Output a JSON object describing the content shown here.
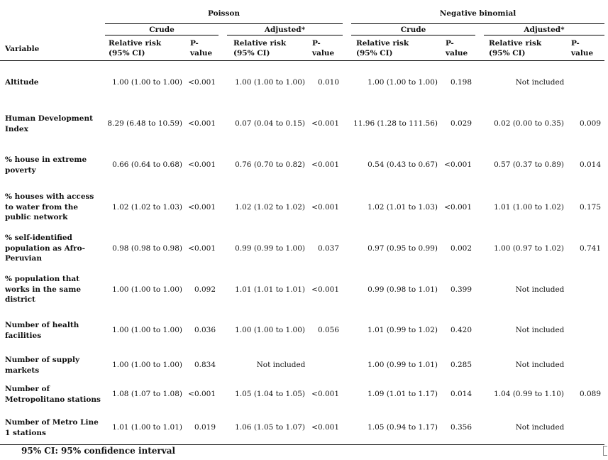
{
  "header": {
    "group_poisson": "Poisson",
    "group_negbin": "Negative binomial",
    "crude": "Crude",
    "adjusted": "Adjusted*",
    "variable": "Variable",
    "rr_line1": "Relative risk",
    "rr_line2": "(95% CI)",
    "p_line1": "P-",
    "p_line2": "value"
  },
  "rows": [
    {
      "variable": "Altitude",
      "p_crude_rr": "1.00 (1.00 to 1.00)",
      "p_crude_p": "<0.001",
      "p_adj_rr": "1.00 (1.00 to 1.00)",
      "p_adj_p": "0.010",
      "nb_crude_rr": "1.00 (1.00 to 1.00)",
      "nb_crude_p": "0.198",
      "nb_adj_rr": "Not included",
      "nb_adj_p": ""
    },
    {
      "variable": "Human Development Index",
      "p_crude_rr": "8.29 (6.48 to 10.59)",
      "p_crude_p": "<0.001",
      "p_adj_rr": "0.07 (0.04 to 0.15)",
      "p_adj_p": "<0.001",
      "nb_crude_rr": "11.96 (1.28 to 111.56)",
      "nb_crude_p": "0.029",
      "nb_adj_rr": "0.02 (0.00 to 0.35)",
      "nb_adj_p": "0.009"
    },
    {
      "variable": "% house in extreme poverty",
      "p_crude_rr": "0.66 (0.64 to 0.68)",
      "p_crude_p": "<0.001",
      "p_adj_rr": "0.76 (0.70 to 0.82)",
      "p_adj_p": "<0.001",
      "nb_crude_rr": "0.54 (0.43 to 0.67)",
      "nb_crude_p": "<0.001",
      "nb_adj_rr": "0.57 (0.37 to 0.89)",
      "nb_adj_p": "0.014"
    },
    {
      "variable": "% houses with access to water from the public network",
      "p_crude_rr": "1.02 (1.02 to 1.03)",
      "p_crude_p": "<0.001",
      "p_adj_rr": "1.02 (1.02 to 1.02)",
      "p_adj_p": "<0.001",
      "nb_crude_rr": "1.02 (1.01 to 1.03)",
      "nb_crude_p": "<0.001",
      "nb_adj_rr": "1.01 (1.00 to 1.02)",
      "nb_adj_p": "0.175"
    },
    {
      "variable": "% self-identified population as Afro-Peruvian",
      "p_crude_rr": "0.98 (0.98 to 0.98)",
      "p_crude_p": "<0.001",
      "p_adj_rr": "0.99 (0.99 to 1.00)",
      "p_adj_p": "0.037",
      "nb_crude_rr": "0.97 (0.95 to 0.99)",
      "nb_crude_p": "0.002",
      "nb_adj_rr": "1.00 (0.97 to 1.02)",
      "nb_adj_p": "0.741"
    },
    {
      "variable": "% population that works in the same district",
      "p_crude_rr": "1.00 (1.00 to 1.00)",
      "p_crude_p": "0.092",
      "p_adj_rr": "1.01 (1.01 to 1.01)",
      "p_adj_p": "<0.001",
      "nb_crude_rr": "0.99 (0.98 to 1.01)",
      "nb_crude_p": "0.399",
      "nb_adj_rr": "Not included",
      "nb_adj_p": ""
    },
    {
      "variable": "Number of health facilities",
      "p_crude_rr": "1.00 (1.00 to 1.00)",
      "p_crude_p": "0.036",
      "p_adj_rr": "1.00 (1.00 to 1.00)",
      "p_adj_p": "0.056",
      "nb_crude_rr": "1.01 (0.99 to 1.02)",
      "nb_crude_p": "0.420",
      "nb_adj_rr": "Not included",
      "nb_adj_p": ""
    },
    {
      "variable": "Number of supply markets",
      "p_crude_rr": "1.00 (1.00 to 1.00)",
      "p_crude_p": "0.834",
      "p_adj_rr": "Not included",
      "p_adj_p": "",
      "nb_crude_rr": "1.00 (0.99 to 1.01)",
      "nb_crude_p": "0.285",
      "nb_adj_rr": "Not included",
      "nb_adj_p": ""
    },
    {
      "variable": "Number of Metropolitano stations",
      "p_crude_rr": "1.08 (1.07 to 1.08)",
      "p_crude_p": "<0.001",
      "p_adj_rr": "1.05 (1.04 to 1.05)",
      "p_adj_p": "<0.001",
      "nb_crude_rr": "1.09 (1.01 to 1.17)",
      "nb_crude_p": "0.014",
      "nb_adj_rr": "1.04 (0.99 to 1.10)",
      "nb_adj_p": "0.089"
    },
    {
      "variable": "Number of Metro Line 1 stations",
      "p_crude_rr": "1.01 (1.00 to 1.01)",
      "p_crude_p": "0.019",
      "p_adj_rr": "1.06 (1.05 to 1.07)",
      "p_adj_p": "<0.001",
      "nb_crude_rr": "1.05 (0.94 to 1.17)",
      "nb_crude_p": "0.356",
      "nb_adj_rr": "Not included",
      "nb_adj_p": ""
    }
  ],
  "footnote": "95% CI: 95% confidence interval"
}
